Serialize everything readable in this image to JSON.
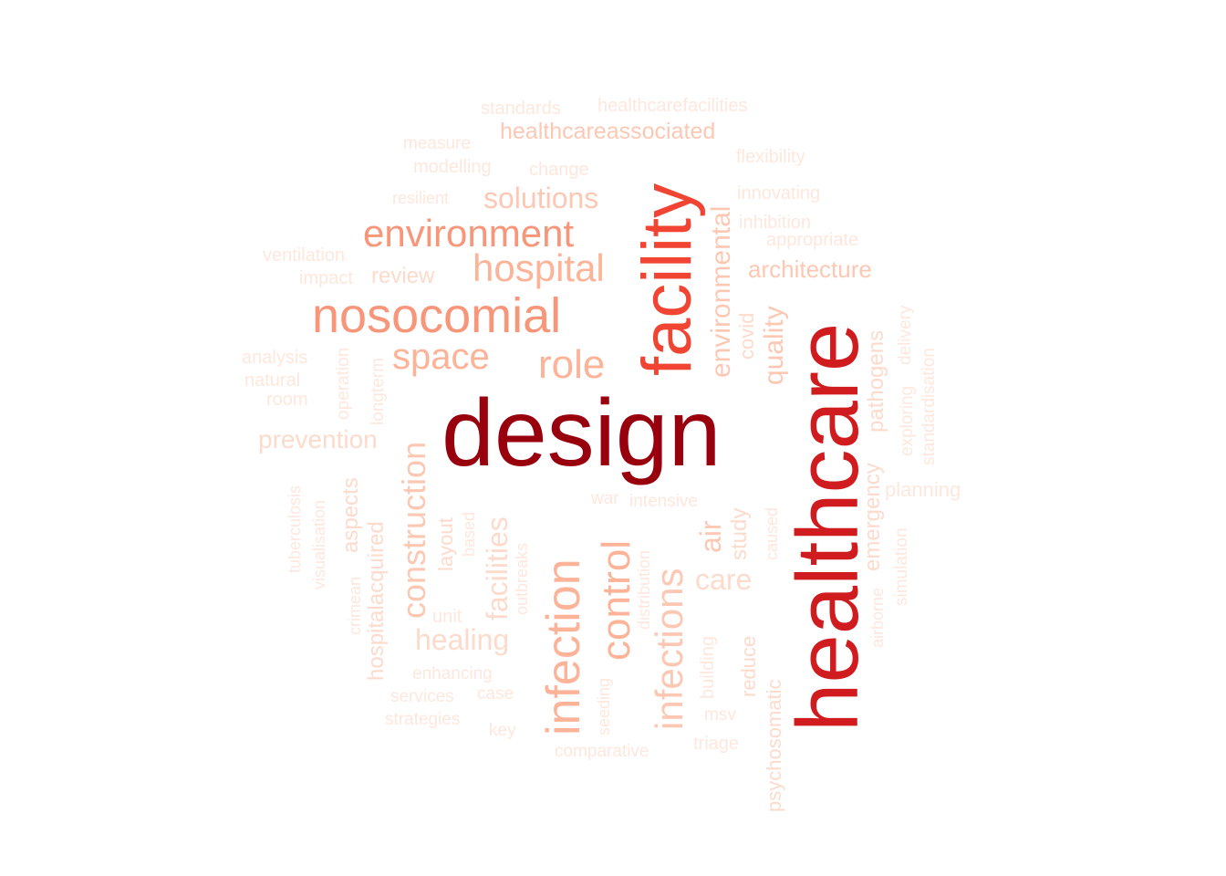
{
  "colors": {
    "c0": "#99000d",
    "c1": "#d01c1f",
    "c2": "#f14432",
    "c3": "#f8967a",
    "c4": "#fcb398",
    "c5": "#fcc8b3",
    "c6": "#fddbcc",
    "c7": "#fee7dd"
  },
  "words": [
    {
      "id": "design",
      "text": "design",
      "color": "c0"
    },
    {
      "id": "healthcare",
      "text": "healthcare",
      "color": "c1"
    },
    {
      "id": "facility",
      "text": "facility",
      "color": "c2"
    },
    {
      "id": "nosocomial",
      "text": "nosocomial",
      "color": "c3"
    },
    {
      "id": "environment",
      "text": "environment",
      "color": "c3"
    },
    {
      "id": "hospital",
      "text": "hospital",
      "color": "c4"
    },
    {
      "id": "infection",
      "text": "infection",
      "color": "c4"
    },
    {
      "id": "space",
      "text": "space",
      "color": "c4"
    },
    {
      "id": "role",
      "text": "role",
      "color": "c4"
    },
    {
      "id": "solutions",
      "text": "solutions",
      "color": "c5"
    },
    {
      "id": "control",
      "text": "control",
      "color": "c4"
    },
    {
      "id": "infections",
      "text": "infections",
      "color": "c5"
    },
    {
      "id": "construction",
      "text": "construction",
      "color": "c5"
    },
    {
      "id": "environmental",
      "text": "environmental",
      "color": "c5"
    },
    {
      "id": "healthcareassociated",
      "text": "healthcareassociated",
      "color": "c5"
    },
    {
      "id": "architecture",
      "text": "architecture",
      "color": "c5"
    },
    {
      "id": "quality",
      "text": "quality",
      "color": "c5"
    },
    {
      "id": "prevention",
      "text": "prevention",
      "color": "c6"
    },
    {
      "id": "healing",
      "text": "healing",
      "color": "c6"
    },
    {
      "id": "air",
      "text": "air",
      "color": "c5"
    },
    {
      "id": "care",
      "text": "care",
      "color": "c6"
    },
    {
      "id": "facilities",
      "text": "facilities",
      "color": "c6"
    },
    {
      "id": "review",
      "text": "review",
      "color": "c6"
    },
    {
      "id": "pathogens",
      "text": "pathogens",
      "color": "c6"
    },
    {
      "id": "emergency",
      "text": "emergency",
      "color": "c6"
    },
    {
      "id": "aspects",
      "text": "aspects",
      "color": "c6"
    },
    {
      "id": "hospitalacquired",
      "text": "hospitalacquired",
      "color": "c6"
    },
    {
      "id": "covid",
      "text": "covid",
      "color": "c6"
    },
    {
      "id": "study",
      "text": "study",
      "color": "c6"
    },
    {
      "id": "standards",
      "text": "standards",
      "color": "c7"
    },
    {
      "id": "healthcarefacilities",
      "text": "healthcarefacilities",
      "color": "c7"
    },
    {
      "id": "measure",
      "text": "measure",
      "color": "c7"
    },
    {
      "id": "modelling",
      "text": "modelling",
      "color": "c7"
    },
    {
      "id": "change",
      "text": "change",
      "color": "c7"
    },
    {
      "id": "flexibility",
      "text": "flexibility",
      "color": "c7"
    },
    {
      "id": "resilient",
      "text": "resilient",
      "color": "c7"
    },
    {
      "id": "innovating",
      "text": "innovating",
      "color": "c7"
    },
    {
      "id": "inhibition",
      "text": "inhibition",
      "color": "c7"
    },
    {
      "id": "appropriate",
      "text": "appropriate",
      "color": "c7"
    },
    {
      "id": "ventilation",
      "text": "ventilation",
      "color": "c7"
    },
    {
      "id": "impact",
      "text": "impact",
      "color": "c7"
    },
    {
      "id": "analysis",
      "text": "analysis",
      "color": "c7"
    },
    {
      "id": "natural",
      "text": "natural",
      "color": "c7"
    },
    {
      "id": "room",
      "text": "room",
      "color": "c7"
    },
    {
      "id": "operation",
      "text": "operation",
      "color": "c7"
    },
    {
      "id": "longterm",
      "text": "longterm",
      "color": "c7"
    },
    {
      "id": "delivery",
      "text": "delivery",
      "color": "c7"
    },
    {
      "id": "exploring",
      "text": "exploring",
      "color": "c7"
    },
    {
      "id": "standardisation",
      "text": "standardisation",
      "color": "c7"
    },
    {
      "id": "planning",
      "text": "planning",
      "color": "c7"
    },
    {
      "id": "war",
      "text": "war",
      "color": "c7"
    },
    {
      "id": "intensive",
      "text": "intensive",
      "color": "c7"
    },
    {
      "id": "tuberculosis",
      "text": "tuberculosis",
      "color": "c7"
    },
    {
      "id": "visualisation",
      "text": "visualisation",
      "color": "c7"
    },
    {
      "id": "crimean",
      "text": "crimean",
      "color": "c7"
    },
    {
      "id": "layout",
      "text": "layout",
      "color": "c6"
    },
    {
      "id": "based",
      "text": "based",
      "color": "c7"
    },
    {
      "id": "outbreaks",
      "text": "outbreaks",
      "color": "c7"
    },
    {
      "id": "distribution",
      "text": "distribution",
      "color": "c7"
    },
    {
      "id": "caused",
      "text": "caused",
      "color": "c7"
    },
    {
      "id": "airborne",
      "text": "airborne",
      "color": "c7"
    },
    {
      "id": "simulation",
      "text": "simulation",
      "color": "c7"
    },
    {
      "id": "unit",
      "text": "unit",
      "color": "c7"
    },
    {
      "id": "building",
      "text": "building",
      "color": "c7"
    },
    {
      "id": "reduce",
      "text": "reduce",
      "color": "c6"
    },
    {
      "id": "psychosomatic",
      "text": "psychosomatic",
      "color": "c6"
    },
    {
      "id": "enhancing",
      "text": "enhancing",
      "color": "c7"
    },
    {
      "id": "services",
      "text": "services",
      "color": "c7"
    },
    {
      "id": "case",
      "text": "case",
      "color": "c7"
    },
    {
      "id": "strategies",
      "text": "strategies",
      "color": "c7"
    },
    {
      "id": "key",
      "text": "key",
      "color": "c7"
    },
    {
      "id": "seeding",
      "text": "seeding",
      "color": "c7"
    },
    {
      "id": "msv",
      "text": "msv",
      "color": "c7"
    },
    {
      "id": "triage",
      "text": "triage",
      "color": "c7"
    },
    {
      "id": "comparative",
      "text": "comparative",
      "color": "c7"
    }
  ]
}
